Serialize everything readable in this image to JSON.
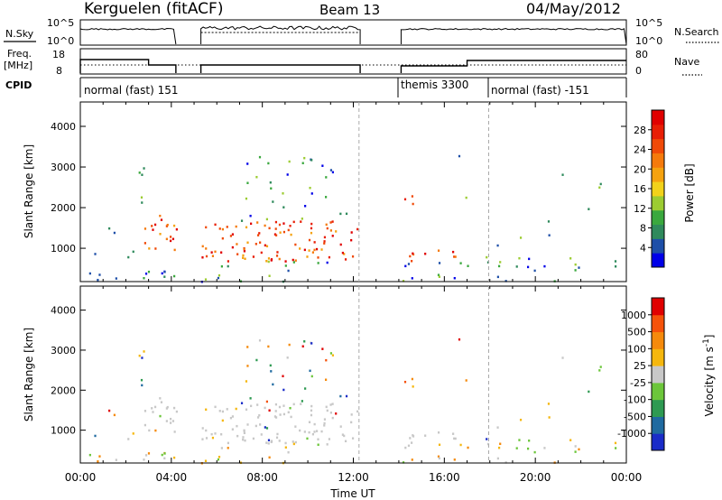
{
  "header": {
    "title": "Kerguelen (fitACF)",
    "beam": "Beam 13",
    "date": "04/May/2012"
  },
  "top_panels": {
    "nsky_label": "N.Sky",
    "nsky_ticks": [
      "10^5",
      "10^0"
    ],
    "nsearch_label": "N.Search",
    "nsearch_ticks": [
      "10^5",
      "10^0"
    ],
    "freq_label_1": "Freq.",
    "freq_label_2": "[MHz]",
    "freq_ticks": [
      "18",
      "8"
    ],
    "nave_label": "Nave",
    "nave_ticks": [
      "80",
      "0"
    ],
    "cpid_label": "CPID",
    "cpid_segments": [
      {
        "label": "normal (fast) 151",
        "start_hr": 0,
        "end_hr": 14
      },
      {
        "label": "themis 3300",
        "start_hr": 14,
        "end_hr": 18
      },
      {
        "label": "normal (fast) -151",
        "start_hr": 18,
        "end_hr": 24
      }
    ],
    "data_gaps_hr": [
      [
        4.2,
        5.3
      ],
      [
        12.3,
        14.1
      ]
    ]
  },
  "axes": {
    "xlabel": "Time UT",
    "xticks": [
      "00:00",
      "04:00",
      "08:00",
      "12:00",
      "16:00",
      "20:00",
      "00:00"
    ],
    "ylabel": "Slant Range [km]",
    "yticks": [
      "4000",
      "3000",
      "2000",
      "1000"
    ],
    "yrange_km": [
      180,
      4600
    ],
    "xrange_hr": [
      0,
      24
    ]
  },
  "power_colorbar": {
    "label": "Power [dB]",
    "ticks": [
      "28",
      "24",
      "20",
      "16",
      "12",
      "8",
      "4"
    ],
    "colors": [
      "#0000e8",
      "#1e4fa8",
      "#2f8a5c",
      "#3aa83e",
      "#9ccc32",
      "#f2d21a",
      "#f5a20f",
      "#f57a0c",
      "#f04a08",
      "#e81e05",
      "#e00000"
    ]
  },
  "velocity_colorbar": {
    "label": "Velocity [m s",
    "label_sup": "-1",
    "label_end": "]",
    "ticks": [
      "1000",
      "500",
      "100",
      "25",
      "-25",
      "-100",
      "-500",
      "-1000"
    ],
    "colors": [
      "#1a2cc8",
      "#1f6aa0",
      "#2e9a52",
      "#6cc63a",
      "#c8c8c8",
      "#f5b70e",
      "#f58a0c",
      "#f5520a",
      "#e00000"
    ]
  },
  "chart_data": {
    "type": "heatmap",
    "panels": [
      "Power",
      "Velocity"
    ],
    "x_unit": "hours UT",
    "y_unit": "km",
    "scatter_regions": [
      {
        "t0": 0.0,
        "t1": 4.2,
        "r0": 200,
        "r1": 500,
        "density": 0.55
      },
      {
        "t0": 0.9,
        "t1": 2.2,
        "r0": 1400,
        "r1": 1700,
        "density": 0.35
      },
      {
        "t0": 0.6,
        "t1": 2.7,
        "r0": 800,
        "r1": 1100,
        "density": 0.3
      },
      {
        "t0": 2.2,
        "t1": 2.9,
        "r0": 1800,
        "r1": 3000,
        "density": 0.35
      },
      {
        "t0": 2.8,
        "t1": 4.2,
        "r0": 900,
        "r1": 1900,
        "density": 0.8
      },
      {
        "t0": 5.3,
        "t1": 12.2,
        "r0": 700,
        "r1": 1700,
        "density": 0.85
      },
      {
        "t0": 5.5,
        "t1": 11.0,
        "r0": 350,
        "r1": 700,
        "density": 0.25
      },
      {
        "t0": 7.0,
        "t1": 12.2,
        "r0": 1700,
        "r1": 3300,
        "density": 0.22
      },
      {
        "t0": 5.3,
        "t1": 12.2,
        "r0": 200,
        "r1": 400,
        "density": 0.3
      },
      {
        "t0": 14.1,
        "t1": 16.5,
        "r0": 700,
        "r1": 1000,
        "density": 0.75
      },
      {
        "t0": 14.1,
        "t1": 14.8,
        "r0": 2100,
        "r1": 3000,
        "density": 0.3
      },
      {
        "t0": 14.1,
        "t1": 18.0,
        "r0": 200,
        "r1": 700,
        "density": 0.35
      },
      {
        "t0": 18.0,
        "t1": 24.0,
        "r0": 200,
        "r1": 800,
        "density": 0.28
      },
      {
        "t0": 16.0,
        "t1": 24.0,
        "r0": 800,
        "r1": 3500,
        "density": 0.03
      }
    ],
    "dashed_lines_hr": [
      12.25,
      17.95
    ]
  }
}
